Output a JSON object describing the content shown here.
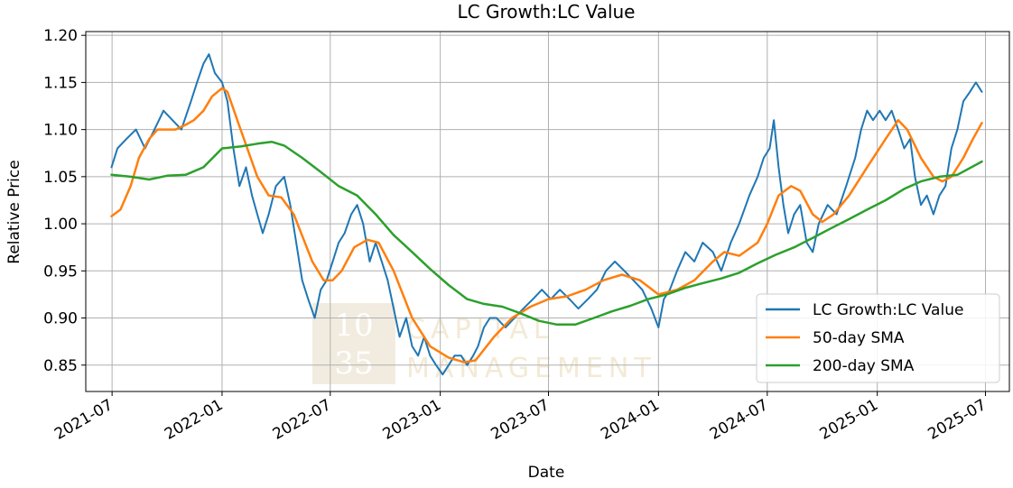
{
  "chart_data": {
    "type": "line",
    "title": "LC Growth:LC Value",
    "xlabel": "Date",
    "ylabel": "Relative Price",
    "x_ticks": [
      "2021-07",
      "2022-01",
      "2022-07",
      "2023-01",
      "2023-07",
      "2024-01",
      "2024-07",
      "2025-01",
      "2025-07"
    ],
    "y_ticks": [
      "0.85",
      "0.90",
      "0.95",
      "1.00",
      "1.05",
      "1.10",
      "1.15",
      "1.20"
    ],
    "xlim": [
      "2021-05-18",
      "2025-08-10"
    ],
    "ylim": [
      0.822,
      1.204
    ],
    "grid": true,
    "legend_position": "lower-right",
    "watermark": {
      "logo_lines": [
        "10",
        "35"
      ],
      "text_lines": [
        "CAPITAL",
        "MANAGEMENT"
      ]
    },
    "series": [
      {
        "name": "LC Growth:LC Value",
        "color": "#1f77b4",
        "points": [
          [
            "2021-06-30",
            1.06
          ],
          [
            "2021-07-10",
            1.08
          ],
          [
            "2021-07-25",
            1.09
          ],
          [
            "2021-08-10",
            1.1
          ],
          [
            "2021-08-25",
            1.08
          ],
          [
            "2021-09-10",
            1.1
          ],
          [
            "2021-09-25",
            1.12
          ],
          [
            "2021-10-10",
            1.11
          ],
          [
            "2021-10-25",
            1.1
          ],
          [
            "2021-11-10",
            1.13
          ],
          [
            "2021-11-20",
            1.15
          ],
          [
            "2021-12-01",
            1.17
          ],
          [
            "2021-12-10",
            1.18
          ],
          [
            "2021-12-20",
            1.16
          ],
          [
            "2022-01-01",
            1.15
          ],
          [
            "2022-01-10",
            1.13
          ],
          [
            "2022-01-20",
            1.08
          ],
          [
            "2022-01-30",
            1.04
          ],
          [
            "2022-02-10",
            1.06
          ],
          [
            "2022-02-20",
            1.03
          ],
          [
            "2022-03-01",
            1.01
          ],
          [
            "2022-03-10",
            0.99
          ],
          [
            "2022-03-20",
            1.01
          ],
          [
            "2022-04-01",
            1.04
          ],
          [
            "2022-04-15",
            1.05
          ],
          [
            "2022-04-25",
            1.02
          ],
          [
            "2022-05-05",
            0.98
          ],
          [
            "2022-05-15",
            0.94
          ],
          [
            "2022-05-25",
            0.92
          ],
          [
            "2022-06-05",
            0.9
          ],
          [
            "2022-06-15",
            0.93
          ],
          [
            "2022-06-25",
            0.94
          ],
          [
            "2022-07-05",
            0.96
          ],
          [
            "2022-07-15",
            0.98
          ],
          [
            "2022-07-25",
            0.99
          ],
          [
            "2022-08-05",
            1.01
          ],
          [
            "2022-08-15",
            1.02
          ],
          [
            "2022-08-25",
            1.0
          ],
          [
            "2022-09-05",
            0.96
          ],
          [
            "2022-09-15",
            0.98
          ],
          [
            "2022-09-25",
            0.96
          ],
          [
            "2022-10-05",
            0.94
          ],
          [
            "2022-10-15",
            0.91
          ],
          [
            "2022-10-25",
            0.88
          ],
          [
            "2022-11-05",
            0.9
          ],
          [
            "2022-11-15",
            0.87
          ],
          [
            "2022-11-25",
            0.86
          ],
          [
            "2022-12-05",
            0.88
          ],
          [
            "2022-12-15",
            0.86
          ],
          [
            "2022-12-25",
            0.85
          ],
          [
            "2023-01-05",
            0.84
          ],
          [
            "2023-01-15",
            0.85
          ],
          [
            "2023-01-25",
            0.86
          ],
          [
            "2023-02-05",
            0.86
          ],
          [
            "2023-02-15",
            0.85
          ],
          [
            "2023-02-25",
            0.86
          ],
          [
            "2023-03-05",
            0.87
          ],
          [
            "2023-03-15",
            0.89
          ],
          [
            "2023-03-25",
            0.9
          ],
          [
            "2023-04-05",
            0.9
          ],
          [
            "2023-04-20",
            0.89
          ],
          [
            "2023-05-05",
            0.9
          ],
          [
            "2023-05-20",
            0.91
          ],
          [
            "2023-06-05",
            0.92
          ],
          [
            "2023-06-20",
            0.93
          ],
          [
            "2023-07-05",
            0.92
          ],
          [
            "2023-07-20",
            0.93
          ],
          [
            "2023-08-05",
            0.92
          ],
          [
            "2023-08-20",
            0.91
          ],
          [
            "2023-09-05",
            0.92
          ],
          [
            "2023-09-20",
            0.93
          ],
          [
            "2023-10-05",
            0.95
          ],
          [
            "2023-10-20",
            0.96
          ],
          [
            "2023-11-05",
            0.95
          ],
          [
            "2023-11-20",
            0.94
          ],
          [
            "2023-12-05",
            0.93
          ],
          [
            "2023-12-20",
            0.91
          ],
          [
            "2024-01-01",
            0.89
          ],
          [
            "2024-01-10",
            0.92
          ],
          [
            "2024-01-20",
            0.93
          ],
          [
            "2024-02-01",
            0.95
          ],
          [
            "2024-02-15",
            0.97
          ],
          [
            "2024-03-01",
            0.96
          ],
          [
            "2024-03-15",
            0.98
          ],
          [
            "2024-04-01",
            0.97
          ],
          [
            "2024-04-15",
            0.95
          ],
          [
            "2024-05-01",
            0.98
          ],
          [
            "2024-05-15",
            1.0
          ],
          [
            "2024-06-01",
            1.03
          ],
          [
            "2024-06-15",
            1.05
          ],
          [
            "2024-06-25",
            1.07
          ],
          [
            "2024-07-05",
            1.08
          ],
          [
            "2024-07-12",
            1.11
          ],
          [
            "2024-07-20",
            1.06
          ],
          [
            "2024-07-28",
            1.02
          ],
          [
            "2024-08-05",
            0.99
          ],
          [
            "2024-08-15",
            1.01
          ],
          [
            "2024-08-25",
            1.02
          ],
          [
            "2024-09-05",
            0.98
          ],
          [
            "2024-09-15",
            0.97
          ],
          [
            "2024-09-25",
            1.0
          ],
          [
            "2024-10-10",
            1.02
          ],
          [
            "2024-10-25",
            1.01
          ],
          [
            "2024-11-10",
            1.04
          ],
          [
            "2024-11-25",
            1.07
          ],
          [
            "2024-12-05",
            1.1
          ],
          [
            "2024-12-15",
            1.12
          ],
          [
            "2024-12-25",
            1.11
          ],
          [
            "2025-01-05",
            1.12
          ],
          [
            "2025-01-15",
            1.11
          ],
          [
            "2025-01-25",
            1.12
          ],
          [
            "2025-02-05",
            1.1
          ],
          [
            "2025-02-15",
            1.08
          ],
          [
            "2025-02-25",
            1.09
          ],
          [
            "2025-03-05",
            1.05
          ],
          [
            "2025-03-15",
            1.02
          ],
          [
            "2025-03-25",
            1.03
          ],
          [
            "2025-04-05",
            1.01
          ],
          [
            "2025-04-15",
            1.03
          ],
          [
            "2025-04-25",
            1.04
          ],
          [
            "2025-05-05",
            1.08
          ],
          [
            "2025-05-15",
            1.1
          ],
          [
            "2025-05-25",
            1.13
          ],
          [
            "2025-06-05",
            1.14
          ],
          [
            "2025-06-15",
            1.15
          ],
          [
            "2025-06-25",
            1.14
          ]
        ]
      },
      {
        "name": "50-day SMA",
        "color": "#ff7f0e",
        "points": [
          [
            "2021-06-30",
            1.008
          ],
          [
            "2021-07-15",
            1.015
          ],
          [
            "2021-08-01",
            1.04
          ],
          [
            "2021-08-15",
            1.07
          ],
          [
            "2021-09-01",
            1.09
          ],
          [
            "2021-09-15",
            1.1
          ],
          [
            "2021-10-01",
            1.1
          ],
          [
            "2021-10-15",
            1.1
          ],
          [
            "2021-11-01",
            1.105
          ],
          [
            "2021-11-15",
            1.11
          ],
          [
            "2021-12-01",
            1.12
          ],
          [
            "2021-12-15",
            1.135
          ],
          [
            "2022-01-01",
            1.144
          ],
          [
            "2022-01-10",
            1.14
          ],
          [
            "2022-02-01",
            1.1
          ],
          [
            "2022-03-01",
            1.05
          ],
          [
            "2022-03-20",
            1.03
          ],
          [
            "2022-04-10",
            1.028
          ],
          [
            "2022-05-01",
            1.01
          ],
          [
            "2022-06-01",
            0.96
          ],
          [
            "2022-06-20",
            0.94
          ],
          [
            "2022-07-05",
            0.94
          ],
          [
            "2022-07-20",
            0.95
          ],
          [
            "2022-08-10",
            0.975
          ],
          [
            "2022-09-01",
            0.983
          ],
          [
            "2022-09-20",
            0.98
          ],
          [
            "2022-10-15",
            0.95
          ],
          [
            "2022-11-15",
            0.9
          ],
          [
            "2022-12-15",
            0.87
          ],
          [
            "2023-01-15",
            0.858
          ],
          [
            "2023-02-10",
            0.853
          ],
          [
            "2023-03-01",
            0.855
          ],
          [
            "2023-04-01",
            0.88
          ],
          [
            "2023-05-01",
            0.9
          ],
          [
            "2023-06-01",
            0.912
          ],
          [
            "2023-07-01",
            0.92
          ],
          [
            "2023-08-01",
            0.923
          ],
          [
            "2023-09-01",
            0.93
          ],
          [
            "2023-10-01",
            0.94
          ],
          [
            "2023-11-01",
            0.946
          ],
          [
            "2023-12-01",
            0.94
          ],
          [
            "2024-01-01",
            0.925
          ],
          [
            "2024-02-01",
            0.93
          ],
          [
            "2024-03-01",
            0.94
          ],
          [
            "2024-04-01",
            0.96
          ],
          [
            "2024-04-20",
            0.97
          ],
          [
            "2024-05-15",
            0.966
          ],
          [
            "2024-06-15",
            0.98
          ],
          [
            "2024-07-01",
            1.0
          ],
          [
            "2024-07-20",
            1.03
          ],
          [
            "2024-08-10",
            1.04
          ],
          [
            "2024-08-25",
            1.035
          ],
          [
            "2024-09-15",
            1.01
          ],
          [
            "2024-10-01",
            1.002
          ],
          [
            "2024-10-20",
            1.01
          ],
          [
            "2024-11-15",
            1.03
          ],
          [
            "2024-12-15",
            1.06
          ],
          [
            "2025-01-15",
            1.09
          ],
          [
            "2025-02-05",
            1.11
          ],
          [
            "2025-02-20",
            1.1
          ],
          [
            "2025-03-15",
            1.07
          ],
          [
            "2025-04-05",
            1.05
          ],
          [
            "2025-04-20",
            1.045
          ],
          [
            "2025-05-05",
            1.05
          ],
          [
            "2025-05-25",
            1.07
          ],
          [
            "2025-06-10",
            1.09
          ],
          [
            "2025-06-25",
            1.107
          ]
        ]
      },
      {
        "name": "200-day SMA",
        "color": "#2ca02c",
        "points": [
          [
            "2021-06-30",
            1.052
          ],
          [
            "2021-08-01",
            1.05
          ],
          [
            "2021-09-01",
            1.047
          ],
          [
            "2021-10-01",
            1.051
          ],
          [
            "2021-11-01",
            1.052
          ],
          [
            "2021-12-01",
            1.06
          ],
          [
            "2022-01-01",
            1.08
          ],
          [
            "2022-02-01",
            1.082
          ],
          [
            "2022-03-01",
            1.085
          ],
          [
            "2022-03-25",
            1.087
          ],
          [
            "2022-04-15",
            1.083
          ],
          [
            "2022-05-15",
            1.07
          ],
          [
            "2022-06-15",
            1.055
          ],
          [
            "2022-07-15",
            1.04
          ],
          [
            "2022-08-15",
            1.03
          ],
          [
            "2022-09-15",
            1.01
          ],
          [
            "2022-10-15",
            0.988
          ],
          [
            "2022-11-15",
            0.97
          ],
          [
            "2022-12-15",
            0.952
          ],
          [
            "2023-01-15",
            0.935
          ],
          [
            "2023-02-15",
            0.92
          ],
          [
            "2023-03-15",
            0.915
          ],
          [
            "2023-04-15",
            0.912
          ],
          [
            "2023-05-15",
            0.905
          ],
          [
            "2023-06-15",
            0.897
          ],
          [
            "2023-07-15",
            0.893
          ],
          [
            "2023-08-15",
            0.893
          ],
          [
            "2023-09-15",
            0.9
          ],
          [
            "2023-10-15",
            0.907
          ],
          [
            "2023-11-15",
            0.913
          ],
          [
            "2023-12-15",
            0.92
          ],
          [
            "2024-01-15",
            0.925
          ],
          [
            "2024-02-15",
            0.932
          ],
          [
            "2024-03-15",
            0.937
          ],
          [
            "2024-04-15",
            0.942
          ],
          [
            "2024-05-15",
            0.948
          ],
          [
            "2024-06-15",
            0.958
          ],
          [
            "2024-07-15",
            0.967
          ],
          [
            "2024-08-15",
            0.975
          ],
          [
            "2024-09-15",
            0.985
          ],
          [
            "2024-10-15",
            0.995
          ],
          [
            "2024-11-15",
            1.005
          ],
          [
            "2024-12-15",
            1.015
          ],
          [
            "2025-01-15",
            1.025
          ],
          [
            "2025-02-15",
            1.037
          ],
          [
            "2025-03-15",
            1.045
          ],
          [
            "2025-04-15",
            1.05
          ],
          [
            "2025-05-15",
            1.052
          ],
          [
            "2025-06-25",
            1.066
          ]
        ]
      }
    ]
  }
}
